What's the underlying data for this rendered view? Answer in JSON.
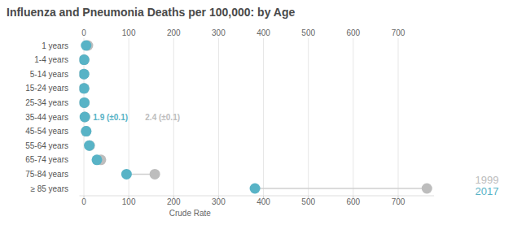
{
  "chart_data": {
    "type": "dumbbell",
    "title": "Influenza and Pneumonia Deaths per 100,000: by Age",
    "x_label": "Crude Rate",
    "orientation": "horizontal",
    "categories": [
      "1 years",
      "1-4 years",
      "5-14 years",
      "15-24 years",
      "25-34 years",
      "35-44 years",
      "45-54 years",
      "55-64 years",
      "65-74 years",
      "75-84 years",
      "≥ 85 years"
    ],
    "series": [
      {
        "name": "1999",
        "color": "#bdbdbd",
        "values": [
          9,
          0.8,
          0.2,
          0.5,
          1.1,
          2.4,
          5,
          13,
          38,
          158,
          764
        ],
        "value_labels": [
          null,
          null,
          null,
          null,
          null,
          "2.4 (±0.1)",
          null,
          null,
          null,
          null,
          null
        ]
      },
      {
        "name": "2017",
        "color": "#58b3c6",
        "values": [
          5,
          0.5,
          0.2,
          0.4,
          0.9,
          1.9,
          5.2,
          12,
          29,
          95,
          381
        ],
        "value_labels": [
          null,
          null,
          null,
          null,
          null,
          "1.9 (±0.1)",
          null,
          null,
          null,
          null,
          null
        ]
      }
    ],
    "xlim": [
      -10,
      780
    ],
    "xticks": [
      0,
      100,
      200,
      300,
      400,
      500,
      600,
      700
    ],
    "grid": true,
    "legend": "bottom-right"
  }
}
